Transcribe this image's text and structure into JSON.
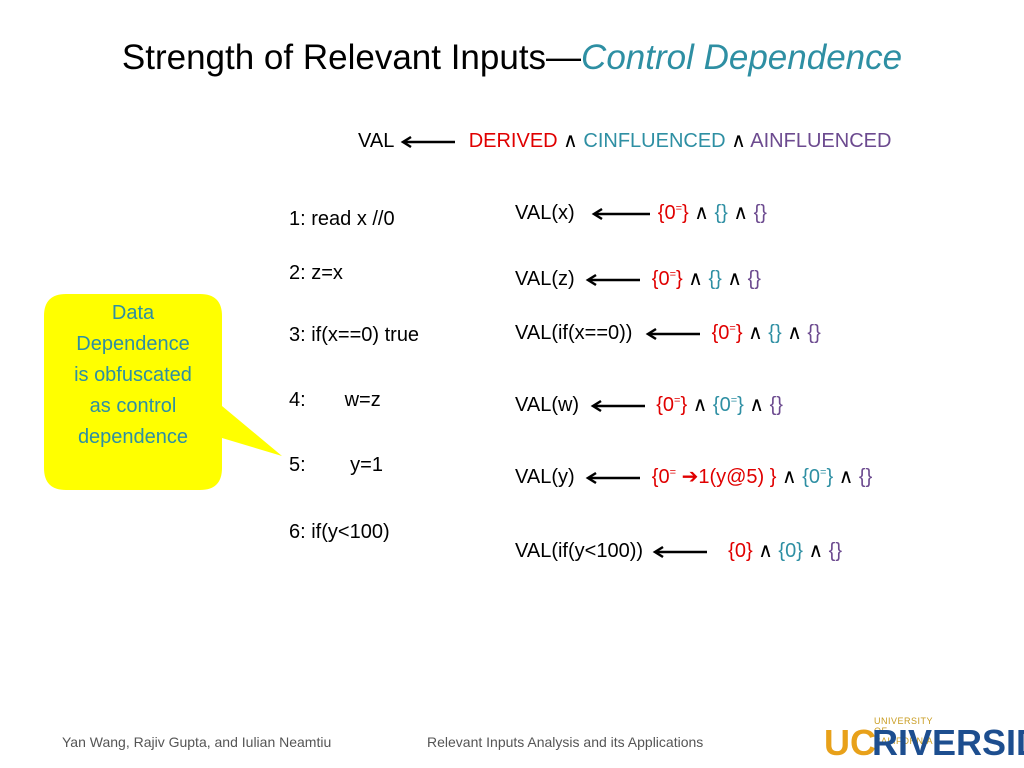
{
  "slide": {
    "title_main": "Strength of Relevant Inputs—",
    "title_accent": "Control Dependence"
  },
  "legend": {
    "val": "VAL",
    "derived": "DERIVED",
    "and1": "∧",
    "cinfluenced": "CINFLUENCED",
    "and2": "∧",
    "ainfluenced": "AINFLUENCED"
  },
  "code_lines": [
    "1: read x //0",
    "2: z=x",
    "3: if(x==0) true",
    "4:       w=z",
    "5:        y=1",
    "6: if(y<100)"
  ],
  "vals": [
    {
      "label": "VAL(x)",
      "d": "{0",
      "dsup": "=",
      "dend": "}",
      "a1": "∧",
      "c": "{}",
      "a2": "∧",
      "a": "{}"
    },
    {
      "label": "VAL(z)",
      "d": "{0",
      "dsup": "=",
      "dend": "}",
      "a1": "∧",
      "c": "{}",
      "a2": "∧",
      "a": "{}"
    },
    {
      "label": "VAL(if(x==0))",
      "d": "{0",
      "dsup": "=",
      "dend": "}",
      "a1": "∧",
      "c": "{}",
      "a2": "∧",
      "a": "{}"
    },
    {
      "label": "VAL(w)",
      "d": "{0",
      "dsup": "=",
      "dend": "}",
      "a1": "∧",
      "c": "{0",
      "csup": "=",
      "cend": "}",
      "a2": "∧",
      "a": "{}"
    },
    {
      "label": "VAL(y)",
      "d": "{0",
      "dsup": "=",
      "darrow": "➔",
      "dtail": "1(y@5) }",
      "a1": "∧",
      "c": "{0",
      "csup": "=",
      "cend": "}",
      "a2": "∧",
      "a": "{}"
    },
    {
      "label": "VAL(if(y<100))",
      "d": "{0}",
      "a1": "∧",
      "c": "{0}",
      "a2": "∧",
      "a": "{}"
    }
  ],
  "callout": {
    "lines": [
      "Data",
      "Dependence",
      "is obfuscated",
      "as control",
      "dependence"
    ]
  },
  "footer": {
    "authors": "Yan Wang, Rajiv Gupta, and Iulian Neamtiu",
    "talk": "Relevant Inputs Analysis and its Applications"
  },
  "logo": {
    "small": "UNIVERSITY OF CALIFORNIA",
    "uc": "UC",
    "riverside": "RIVERSIDE"
  },
  "colors": {
    "derived": "#e00000",
    "cinfluenced": "#2e8fa3",
    "ainfluenced": "#6c4a8f",
    "callout_fill": "#ffff00"
  }
}
